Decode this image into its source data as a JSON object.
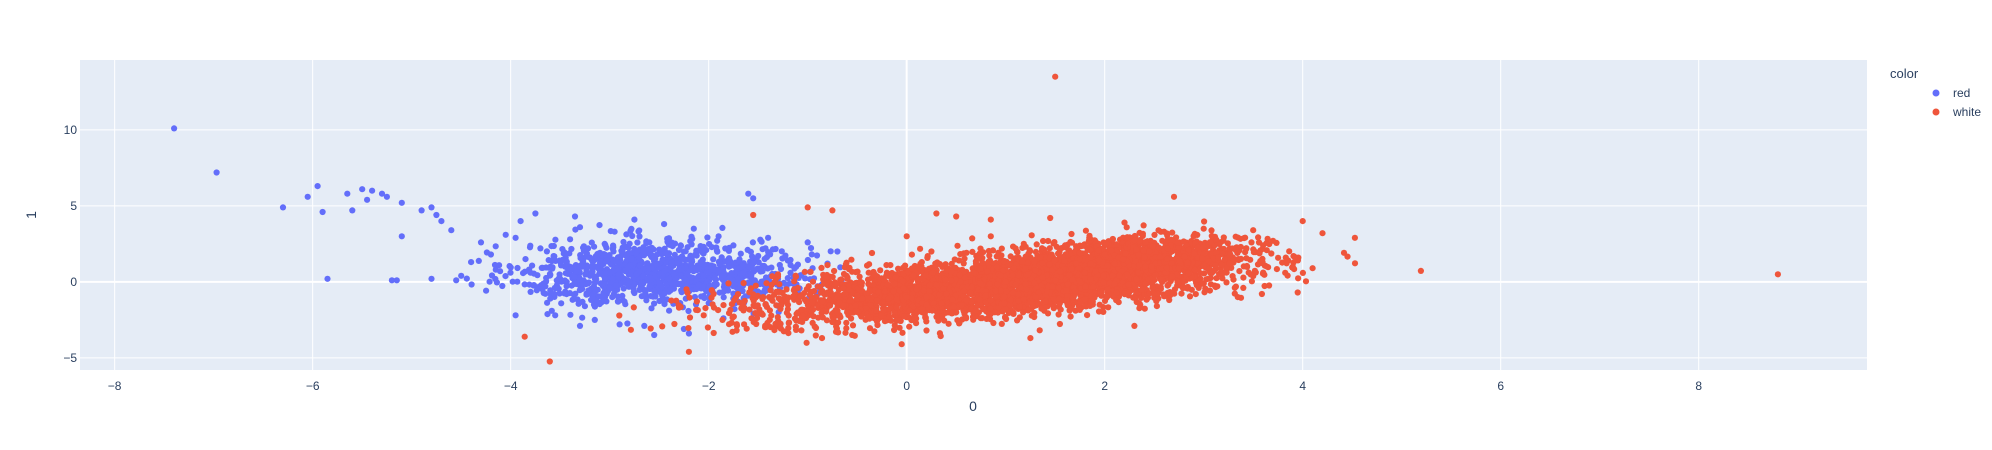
{
  "chart_data": {
    "type": "scatter",
    "title": "",
    "xlabel": "0",
    "ylabel": "1",
    "xlim": [
      -8.35,
      9.7
    ],
    "ylim": [
      -5.8,
      14.6
    ],
    "x_ticks": [
      -8,
      -6,
      -4,
      -2,
      0,
      2,
      4,
      6,
      8
    ],
    "y_ticks": [
      -5,
      0,
      5,
      10
    ],
    "grid": true,
    "legend_title": "color",
    "legend_position": "top-right",
    "series": [
      {
        "name": "red",
        "color": "#636efa",
        "points": [
          [
            -7.4,
            10.1
          ],
          [
            -6.97,
            7.2
          ],
          [
            -6.3,
            4.9
          ],
          [
            -6.05,
            5.6
          ],
          [
            -5.95,
            6.3
          ],
          [
            -5.9,
            4.6
          ],
          [
            -5.85,
            0.2
          ],
          [
            -5.65,
            5.8
          ],
          [
            -5.6,
            4.7
          ],
          [
            -5.5,
            6.1
          ],
          [
            -5.4,
            6.0
          ],
          [
            -5.45,
            5.4
          ],
          [
            -5.3,
            5.8
          ],
          [
            -5.25,
            5.6
          ],
          [
            -5.1,
            5.2
          ],
          [
            -5.2,
            0.1
          ],
          [
            -5.15,
            0.1
          ],
          [
            -5.1,
            3.0
          ],
          [
            -4.9,
            4.7
          ],
          [
            -4.8,
            4.9
          ],
          [
            -4.75,
            4.4
          ],
          [
            -4.7,
            4.0
          ],
          [
            -4.8,
            0.2
          ],
          [
            -4.6,
            3.4
          ],
          [
            -4.55,
            0.1
          ],
          [
            -4.5,
            0.4
          ],
          [
            -4.4,
            1.3
          ],
          [
            -4.3,
            2.6
          ],
          [
            -4.2,
            1.8
          ],
          [
            -4.15,
            0.8
          ],
          [
            -4.05,
            3.1
          ],
          [
            -3.95,
            2.9
          ],
          [
            -3.9,
            4.0
          ],
          [
            -3.85,
            1.5
          ],
          [
            -3.8,
            0.6
          ],
          [
            -3.75,
            4.5
          ],
          [
            -3.7,
            2.2
          ],
          [
            -3.65,
            -0.3
          ],
          [
            -3.6,
            -1.1
          ],
          [
            -3.55,
            -2.2
          ],
          [
            -3.5,
            0.2
          ],
          [
            -3.45,
            1.0
          ],
          [
            -3.4,
            2.8
          ],
          [
            -3.35,
            4.3
          ],
          [
            -3.3,
            3.6
          ],
          [
            -3.25,
            -1.6
          ],
          [
            -3.2,
            1.6
          ],
          [
            -3.15,
            -2.5
          ],
          [
            -3.1,
            0.9
          ],
          [
            -3.05,
            2.5
          ],
          [
            -3.0,
            -0.4
          ],
          [
            -2.95,
            3.3
          ],
          [
            -2.9,
            0.3
          ],
          [
            -2.85,
            -1.3
          ],
          [
            -2.8,
            1.9
          ],
          [
            -2.75,
            4.1
          ],
          [
            -2.7,
            0.7
          ],
          [
            -2.65,
            -2.9
          ],
          [
            -2.6,
            2.6
          ],
          [
            -2.55,
            -0.6
          ],
          [
            -2.5,
            1.2
          ],
          [
            -2.45,
            3.8
          ],
          [
            -2.4,
            -1.9
          ],
          [
            -2.35,
            0.5
          ],
          [
            -2.3,
            2.1
          ],
          [
            -2.25,
            -3.1
          ],
          [
            -2.2,
            1.5
          ],
          [
            -2.15,
            3.5
          ],
          [
            -2.1,
            -0.2
          ],
          [
            -2.05,
            2.3
          ],
          [
            -2.0,
            -1.4
          ],
          [
            -1.95,
            0.8
          ],
          [
            -1.9,
            3.0
          ],
          [
            -1.85,
            -2.4
          ],
          [
            -1.8,
            1.1
          ],
          [
            -1.75,
            2.4
          ],
          [
            -1.7,
            -0.5
          ],
          [
            -1.65,
            0.6
          ],
          [
            -1.6,
            5.8
          ],
          [
            -1.55,
            5.5
          ],
          [
            -1.5,
            1.7
          ],
          [
            -1.45,
            -1.0
          ],
          [
            -1.4,
            2.9
          ],
          [
            -1.3,
            0.2
          ],
          [
            -1.2,
            1.4
          ],
          [
            -1.1,
            -0.7
          ],
          [
            -1.0,
            2.6
          ],
          [
            -0.95,
            0.9
          ],
          [
            -0.9,
            -0.3
          ],
          [
            -0.8,
            1.2
          ],
          [
            -0.7,
            2.0
          ],
          [
            -3.95,
            -2.2
          ],
          [
            -2.9,
            -2.8
          ],
          [
            -2.55,
            -3.5
          ],
          [
            -2.2,
            -3.4
          ],
          [
            -3.3,
            -2.9
          ],
          [
            -2.7,
            1.6
          ],
          [
            -2.8,
            0.0
          ],
          [
            -3.1,
            1.2
          ],
          [
            -2.4,
            0.2
          ],
          [
            -2.6,
            0.9
          ],
          [
            -3.0,
            0.6
          ],
          [
            -2.3,
            0.8
          ],
          [
            -2.9,
            1.3
          ],
          [
            -2.5,
            -0.1
          ]
        ]
      },
      {
        "name": "white",
        "color": "#ef553b",
        "points": [
          [
            1.5,
            13.5
          ],
          [
            8.8,
            0.5
          ],
          [
            4.2,
            3.2
          ],
          [
            4.1,
            0.9
          ],
          [
            4.0,
            4.0
          ],
          [
            3.95,
            -0.7
          ],
          [
            3.9,
            1.0
          ],
          [
            3.7,
            2.7
          ],
          [
            3.6,
            2.4
          ],
          [
            3.5,
            3.4
          ],
          [
            3.4,
            -0.4
          ],
          [
            3.35,
            1.5
          ],
          [
            3.2,
            2.7
          ],
          [
            3.1,
            0.7
          ],
          [
            3.0,
            3.5
          ],
          [
            2.95,
            -0.4
          ],
          [
            2.85,
            2.1
          ],
          [
            2.75,
            0.9
          ],
          [
            2.7,
            5.6
          ],
          [
            2.6,
            3.3
          ],
          [
            2.5,
            -0.8
          ],
          [
            2.45,
            2.0
          ],
          [
            2.35,
            1.1
          ],
          [
            2.3,
            -2.9
          ],
          [
            2.2,
            3.9
          ],
          [
            2.15,
            0.4
          ],
          [
            2.0,
            1.8
          ],
          [
            1.95,
            -1.5
          ],
          [
            1.85,
            2.9
          ],
          [
            1.8,
            0.3
          ],
          [
            1.7,
            -0.6
          ],
          [
            1.6,
            2.4
          ],
          [
            1.55,
            0.7
          ],
          [
            1.45,
            4.2
          ],
          [
            1.4,
            -1.3
          ],
          [
            1.35,
            1.6
          ],
          [
            1.25,
            -3.7
          ],
          [
            1.2,
            0.9
          ],
          [
            1.1,
            2.2
          ],
          [
            1.0,
            -1.8
          ],
          [
            0.95,
            0.4
          ],
          [
            0.85,
            3.0
          ],
          [
            0.8,
            -0.9
          ],
          [
            0.7,
            1.2
          ],
          [
            0.6,
            -2.4
          ],
          [
            0.5,
            4.3
          ],
          [
            0.45,
            0.1
          ],
          [
            0.35,
            -1.4
          ],
          [
            0.25,
            2.0
          ],
          [
            0.2,
            -3.2
          ],
          [
            0.1,
            -0.5
          ],
          [
            0.0,
            3.0
          ],
          [
            -0.05,
            -4.1
          ],
          [
            -0.1,
            -1.7
          ],
          [
            -0.2,
            0.6
          ],
          [
            -0.3,
            -2.6
          ],
          [
            -0.35,
            1.9
          ],
          [
            -0.45,
            -1.1
          ],
          [
            -0.55,
            -3.5
          ],
          [
            -0.6,
            0.2
          ],
          [
            -0.7,
            -2.0
          ],
          [
            -0.8,
            1.1
          ],
          [
            -0.85,
            -1.3
          ],
          [
            -0.95,
            -2.7
          ],
          [
            -1.0,
            4.9
          ],
          [
            -1.1,
            -0.4
          ],
          [
            -1.2,
            -1.8
          ],
          [
            -1.3,
            0.5
          ],
          [
            -1.45,
            -1.0
          ],
          [
            -1.55,
            4.4
          ],
          [
            -1.65,
            -1.4
          ],
          [
            -1.8,
            -0.1
          ],
          [
            -1.95,
            -0.8
          ],
          [
            -2.05,
            -2.2
          ],
          [
            -2.2,
            -4.6
          ],
          [
            -2.3,
            -1.7
          ],
          [
            -0.75,
            4.7
          ],
          [
            0.3,
            4.5
          ],
          [
            0.85,
            4.1
          ],
          [
            1.3,
            -1.0
          ],
          [
            0.4,
            -0.8
          ],
          [
            0.6,
            -1.2
          ],
          [
            0.9,
            -0.6
          ],
          [
            1.1,
            -0.2
          ],
          [
            0.2,
            -1.5
          ],
          [
            0.0,
            -1.0
          ],
          [
            -0.3,
            -1.2
          ],
          [
            1.5,
            0.1
          ],
          [
            1.8,
            0.6
          ],
          [
            2.1,
            1.2
          ],
          [
            2.4,
            1.6
          ],
          [
            0.7,
            -1.9
          ],
          [
            -0.5,
            -0.9
          ],
          [
            1.0,
            0.0
          ],
          [
            0.5,
            -2.0
          ]
        ]
      }
    ],
    "cluster_fills": [
      {
        "series": "red",
        "center": [
          -2.7,
          0.7
        ],
        "spread": [
          0.6,
          1.05
        ],
        "rho": 0.15,
        "count": 850
      },
      {
        "series": "red",
        "center": [
          -1.7,
          0.2
        ],
        "spread": [
          0.4,
          0.85
        ],
        "rho": 0.0,
        "count": 250
      },
      {
        "series": "white",
        "center": [
          0.9,
          -0.3
        ],
        "spread": [
          1.15,
          1.1
        ],
        "rho": 0.55,
        "count": 3400
      },
      {
        "series": "white",
        "center": [
          2.3,
          1.5
        ],
        "spread": [
          0.55,
          0.75
        ],
        "rho": 0.2,
        "count": 900
      }
    ]
  }
}
